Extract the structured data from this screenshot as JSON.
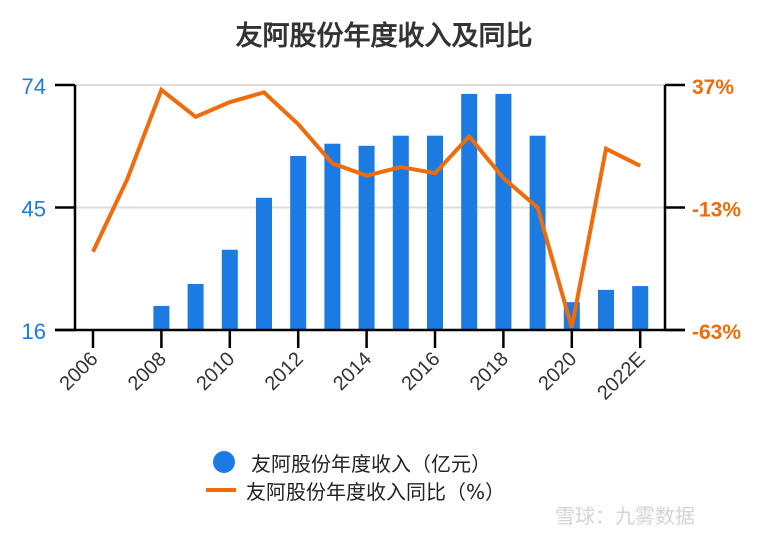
{
  "title": "友阿股份年度收入及同比",
  "watermark": "雪球：九雾数据",
  "legend": {
    "bar_label": "友阿股份年度收入（亿元）",
    "line_label": "友阿股份年度收入同比（%）"
  },
  "colors": {
    "bar": "#1c7be3",
    "line": "#f06b0a",
    "left_axis_text": "#1c7be3",
    "right_axis_text": "#f06b0a"
  },
  "chart_data": {
    "type": "bar",
    "title": "友阿股份年度收入及同比",
    "xlabel": "",
    "ylabel": "",
    "categories": [
      "2006",
      "2007",
      "2008",
      "2009",
      "2010",
      "2011",
      "2012",
      "2013",
      "2014",
      "2015",
      "2016",
      "2017",
      "2018",
      "2019",
      "2020",
      "2021",
      "2022E"
    ],
    "x_tick_labels": [
      "2006",
      "2008",
      "2010",
      "2012",
      "2014",
      "2016",
      "2018",
      "2020",
      "2022E"
    ],
    "series": [
      {
        "name": "友阿股份年度收入（亿元）",
        "type": "bar",
        "axis": "left",
        "values": [
          null,
          null,
          21.7,
          26.9,
          35.0,
          47.3,
          57.2,
          60.1,
          59.6,
          62.0,
          62.0,
          71.9,
          71.9,
          62.0,
          22.6,
          25.5,
          26.4
        ]
      },
      {
        "name": "友阿股份年度收入同比（%）",
        "type": "line",
        "axis": "right",
        "values": [
          -31,
          -1.5,
          35,
          24,
          30,
          34,
          21,
          5,
          0,
          3.5,
          1,
          16,
          -1,
          -13,
          -62,
          11,
          4
        ]
      }
    ],
    "left_axis": {
      "ticks": [
        "74",
        "45",
        "16"
      ],
      "ylim": [
        16,
        74
      ]
    },
    "right_axis": {
      "ticks": [
        "37%",
        "-13%",
        "-63%"
      ],
      "ylim": [
        -63,
        37
      ]
    },
    "grid": true,
    "legend_position": "bottom"
  }
}
